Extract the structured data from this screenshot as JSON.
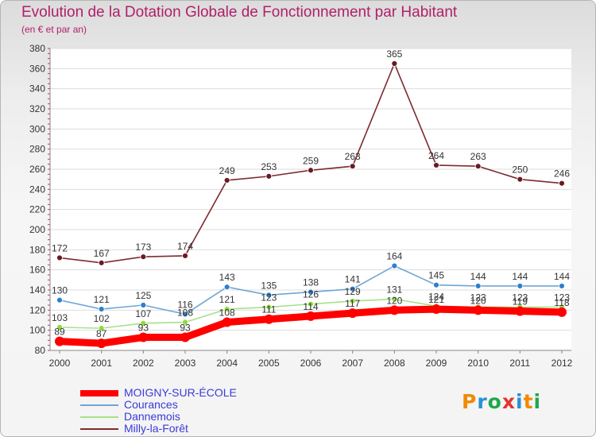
{
  "header": {
    "title": "Evolution de la Dotation Globale de Fonctionnement par Habitant",
    "subtitle": "(en € et par an)"
  },
  "logo": {
    "text": "Proxiti",
    "letter_colors": [
      "#f08a00",
      "#2a8fd6",
      "#1fa84a",
      "#e3352f",
      "#2a8fd6",
      "#f08a00",
      "#1fa84a"
    ]
  },
  "chart_data": {
    "type": "line",
    "title": "Evolution de la Dotation Globale de Fonctionnement par Habitant",
    "subtitle": "(en € et par an)",
    "xlabel": "",
    "ylabel": "",
    "categories": [
      "2000",
      "2001",
      "2002",
      "2003",
      "2004",
      "2005",
      "2006",
      "2007",
      "2008",
      "2009",
      "2010",
      "2011",
      "2012"
    ],
    "ylim": [
      80,
      380
    ],
    "yticks": [
      80,
      100,
      120,
      140,
      160,
      180,
      200,
      220,
      240,
      260,
      280,
      300,
      320,
      340,
      360,
      380
    ],
    "grid": "horizontal",
    "legend": "bottom-left",
    "series": [
      {
        "name": "MOIGNY-SUR-ÉCOLE",
        "color": "#ff0000",
        "marker": "#ff0000",
        "style": "thick",
        "values": [
          89,
          87,
          93,
          93,
          108,
          111,
          114,
          117,
          120,
          121,
          120,
          119,
          118
        ]
      },
      {
        "name": "Courances",
        "color": "#6fa5d6",
        "marker": "#2f7fcc",
        "style": "thin",
        "values": [
          130,
          121,
          125,
          116,
          143,
          135,
          138,
          141,
          164,
          145,
          144,
          144,
          144
        ]
      },
      {
        "name": "Dannemois",
        "color": "#a8e08a",
        "marker": "#8fdc3c",
        "style": "thin",
        "values": [
          103,
          102,
          107,
          108,
          121,
          123,
          126,
          129,
          131,
          124,
          123,
          123,
          123
        ]
      },
      {
        "name": "Milly-la-Forêt",
        "color": "#7d2b30",
        "marker": "#6b1a22",
        "style": "thin",
        "values": [
          172,
          167,
          173,
          174,
          249,
          253,
          259,
          263,
          365,
          264,
          263,
          250,
          246
        ]
      }
    ]
  }
}
